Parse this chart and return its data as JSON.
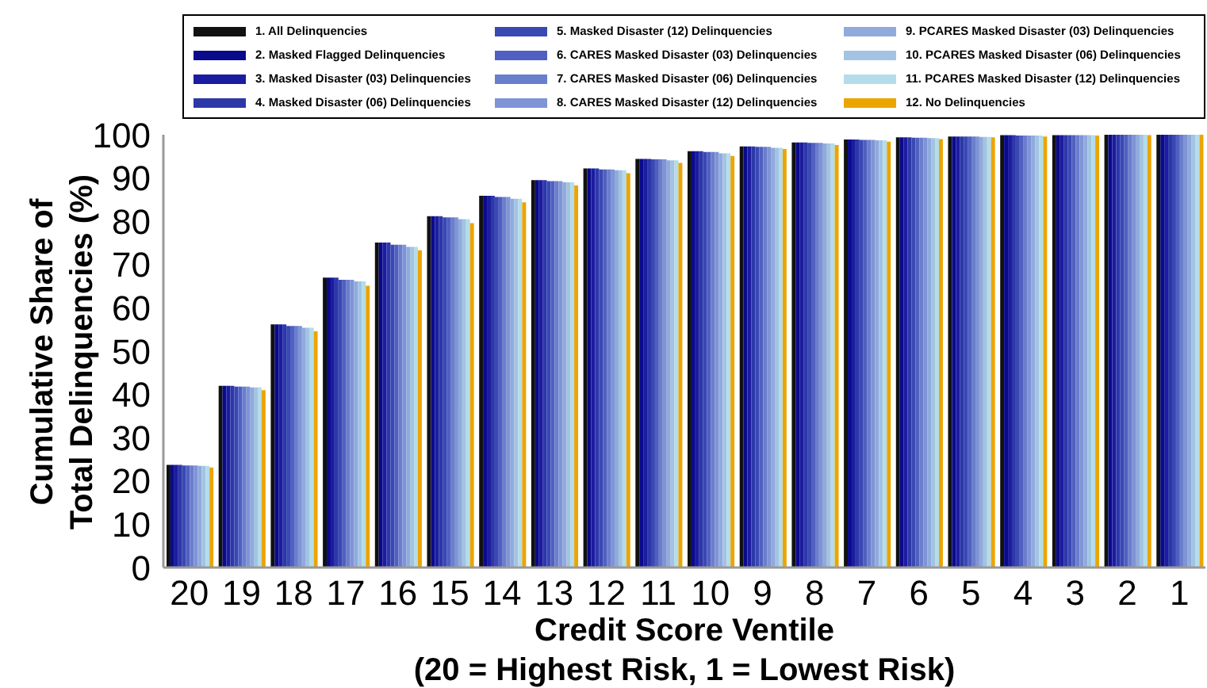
{
  "chart_data": {
    "type": "bar",
    "xlabel": "Credit Score Ventile\n(20 = Highest Risk, 1 = Lowest Risk)",
    "ylabel": "Cumulative Share of\nTotal Delinquencies (%)",
    "categories": [
      "20",
      "19",
      "18",
      "17",
      "16",
      "15",
      "14",
      "13",
      "12",
      "11",
      "10",
      "9",
      "8",
      "7",
      "6",
      "5",
      "4",
      "3",
      "2",
      "1"
    ],
    "ylim": [
      0,
      100
    ],
    "yticks": [
      0,
      10,
      20,
      30,
      40,
      50,
      60,
      70,
      80,
      90,
      100
    ],
    "legend": "top",
    "series": [
      {
        "name": "1. All Delinquencies",
        "color": "#111111",
        "values": [
          23.7,
          42.0,
          56.2,
          67.0,
          75.1,
          81.2,
          85.9,
          89.5,
          92.2,
          94.4,
          96.2,
          97.3,
          98.2,
          98.9,
          99.4,
          99.6,
          99.9,
          99.9,
          100,
          100
        ]
      },
      {
        "name": "2. Masked Flagged Delinquencies",
        "color": "#0a0a8c",
        "values": [
          23.7,
          42.0,
          56.2,
          67.0,
          75.1,
          81.2,
          85.9,
          89.5,
          92.2,
          94.4,
          96.2,
          97.3,
          98.2,
          98.9,
          99.4,
          99.6,
          99.9,
          99.9,
          100,
          100
        ]
      },
      {
        "name": "3. Masked Disaster (03) Delinquencies",
        "color": "#1c1ca0",
        "values": [
          23.7,
          42.0,
          56.2,
          67.0,
          75.1,
          81.2,
          85.9,
          89.5,
          92.2,
          94.4,
          96.2,
          97.3,
          98.2,
          98.9,
          99.4,
          99.6,
          99.9,
          99.9,
          100,
          100
        ]
      },
      {
        "name": "4. Masked Disaster (06) Delinquencies",
        "color": "#2c38a8",
        "values": [
          23.7,
          42.0,
          56.2,
          67.0,
          75.1,
          81.2,
          85.9,
          89.5,
          92.2,
          94.4,
          96.2,
          97.3,
          98.2,
          98.9,
          99.4,
          99.6,
          99.9,
          99.9,
          100,
          100
        ]
      },
      {
        "name": "5. Masked Disaster (12) Delinquencies",
        "color": "#3a48b4",
        "values": [
          23.6,
          41.8,
          55.8,
          66.5,
          74.6,
          80.9,
          85.6,
          89.3,
          92.0,
          94.3,
          96.0,
          97.2,
          98.1,
          98.8,
          99.3,
          99.6,
          99.8,
          99.9,
          100,
          100
        ]
      },
      {
        "name": "6. CARES Masked Disaster (03) Delinquencies",
        "color": "#5060c0",
        "values": [
          23.6,
          41.8,
          55.8,
          66.5,
          74.6,
          80.9,
          85.6,
          89.3,
          92.0,
          94.3,
          96.0,
          97.2,
          98.1,
          98.8,
          99.3,
          99.6,
          99.8,
          99.9,
          100,
          100
        ]
      },
      {
        "name": "7. CARES Masked Disaster (06) Delinquencies",
        "color": "#6a7ecc",
        "values": [
          23.6,
          41.8,
          55.8,
          66.5,
          74.6,
          80.9,
          85.6,
          89.3,
          92.0,
          94.3,
          96.0,
          97.2,
          98.1,
          98.8,
          99.3,
          99.6,
          99.8,
          99.9,
          100,
          100
        ]
      },
      {
        "name": "8. CARES Masked Disaster (12) Delinquencies",
        "color": "#7f94d6",
        "values": [
          23.6,
          41.8,
          55.8,
          66.5,
          74.6,
          80.9,
          85.6,
          89.3,
          92.0,
          94.3,
          96.0,
          97.2,
          98.1,
          98.8,
          99.3,
          99.6,
          99.8,
          99.9,
          100,
          100
        ]
      },
      {
        "name": "9. PCARES Masked Disaster (03) Delinquencies",
        "color": "#90aadc",
        "values": [
          23.5,
          41.6,
          55.4,
          66.1,
          74.1,
          80.5,
          85.2,
          89.0,
          91.8,
          94.1,
          95.7,
          97.0,
          98.0,
          98.7,
          99.2,
          99.5,
          99.8,
          99.9,
          100,
          100
        ]
      },
      {
        "name": "10. PCARES Masked Disaster (06) Delinquencies",
        "color": "#a2c4e2",
        "values": [
          23.5,
          41.6,
          55.4,
          66.1,
          74.1,
          80.5,
          85.2,
          89.0,
          91.8,
          94.1,
          95.7,
          97.0,
          98.0,
          98.7,
          99.2,
          99.5,
          99.8,
          99.9,
          100,
          100
        ]
      },
      {
        "name": "11. PCARES Masked Disaster (12) Delinquencies",
        "color": "#b4dcea",
        "values": [
          23.5,
          41.6,
          55.4,
          66.1,
          74.1,
          80.5,
          85.2,
          89.0,
          91.8,
          94.1,
          95.7,
          97.0,
          98.0,
          98.7,
          99.2,
          99.5,
          99.8,
          99.9,
          100,
          100
        ]
      },
      {
        "name": "12. No Delinquencies",
        "color": "#eca400",
        "values": [
          23.1,
          41.0,
          54.6,
          65.1,
          73.3,
          79.6,
          84.4,
          88.3,
          91.1,
          93.5,
          95.1,
          96.7,
          97.6,
          98.4,
          99.0,
          99.4,
          99.6,
          99.8,
          99.9,
          100
        ]
      }
    ]
  }
}
